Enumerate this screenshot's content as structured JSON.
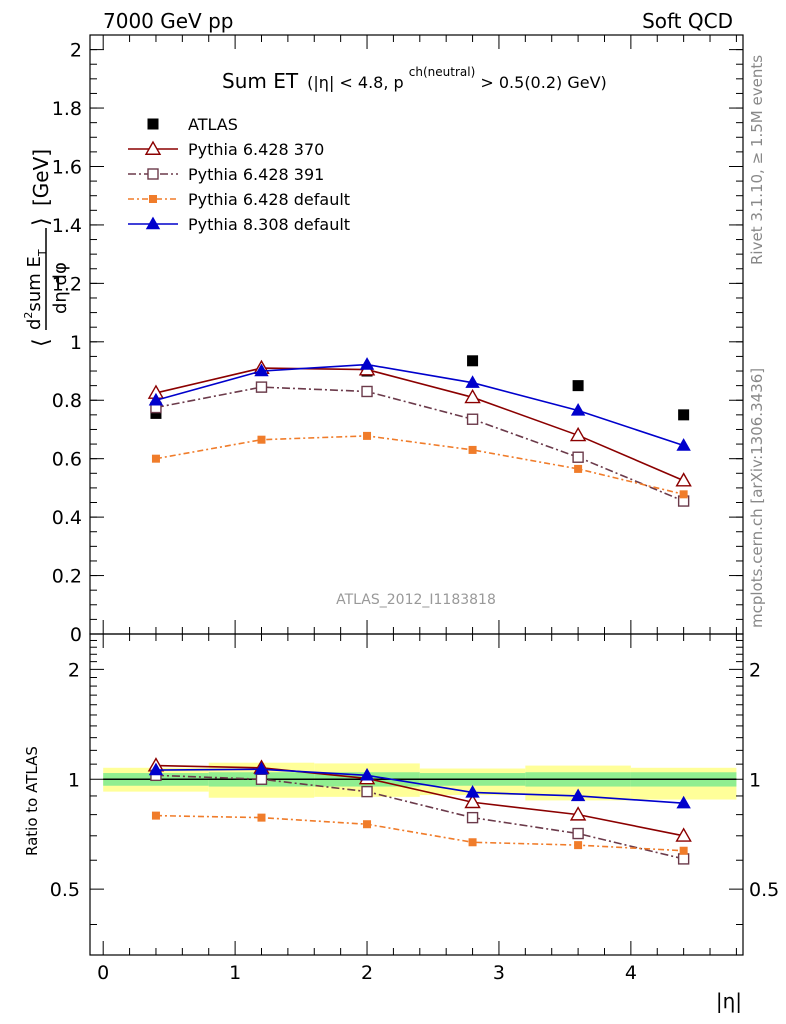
{
  "header": {
    "left": "7000 GeV pp",
    "right": "Soft QCD"
  },
  "side_labels": {
    "rivet": "Rivet 3.1.10, ≥ 1.5M events",
    "mcplots": "mcplots.cern.ch [arXiv:1306.3436]"
  },
  "watermark": "ATLAS_2012_I1183818",
  "colors": {
    "data": "#000000",
    "p6_370": "#8b0000",
    "p6_391": "#6b3a4a",
    "p6_default": "#f07c2a",
    "p8_default": "#0000cc",
    "band_inner": "#90ee90",
    "band_outer": "#ffff99"
  },
  "chart_data": [
    {
      "type": "line",
      "panel": "main",
      "title": {
        "main": "Sum ET",
        "cond1": "(|η| < 4.8, p",
        "sup": "ch(neutral)",
        "cond2": " > 0.5(0.2) GeV)"
      },
      "ylabel": "⟨ d²sum E_T / dη dφ ⟩ [GeV]",
      "xlim": [
        -0.1,
        4.85
      ],
      "ylim": [
        0,
        2.05
      ],
      "yticks": [
        0,
        0.2,
        0.4,
        0.6,
        0.8,
        1,
        1.2,
        1.4,
        1.6,
        1.8,
        2
      ],
      "ytick_labels": [
        "0",
        "0.2",
        "0.4",
        "0.6",
        "0.8",
        "1",
        "1.2",
        "1.4",
        "1.6",
        "1.8",
        "2"
      ],
      "legend_placement": "top-left",
      "x": [
        0.4,
        1.2,
        2.0,
        2.8,
        3.6,
        4.4
      ],
      "series": [
        {
          "key": "data",
          "name": "ATLAS",
          "values": [
            0.755,
            0.845,
            0.9,
            0.935,
            0.85,
            0.75
          ]
        },
        {
          "key": "p6_370",
          "name": "Pythia 6.428 370",
          "values": [
            0.825,
            0.91,
            0.905,
            0.81,
            0.68,
            0.525
          ]
        },
        {
          "key": "p6_391",
          "name": "Pythia 6.428 391",
          "values": [
            0.775,
            0.845,
            0.83,
            0.735,
            0.605,
            0.455
          ]
        },
        {
          "key": "p6_default",
          "name": "Pythia 6.428 default",
          "values": [
            0.6,
            0.665,
            0.678,
            0.63,
            0.565,
            0.478
          ]
        },
        {
          "key": "p8_default",
          "name": "Pythia 8.308 default",
          "values": [
            0.8,
            0.9,
            0.922,
            0.86,
            0.765,
            0.645
          ]
        }
      ]
    },
    {
      "type": "line",
      "panel": "ratio",
      "ylabel": "Ratio to ATLAS",
      "xlabel": "|η|",
      "xlim": [
        -0.1,
        4.85
      ],
      "ylim": [
        0.33,
        2.5
      ],
      "xticks": [
        0,
        1,
        2,
        3,
        4
      ],
      "xtick_labels": [
        "0",
        "1",
        "2",
        "3",
        "4"
      ],
      "yticks": [
        0.5,
        1,
        2
      ],
      "ytick_labels": [
        "0.5",
        "1",
        "2"
      ],
      "bands": [
        {
          "x0": 0.0,
          "x1": 0.8,
          "inner": [
            0.96,
            1.04
          ],
          "outer": [
            0.925,
            1.075
          ]
        },
        {
          "x0": 0.8,
          "x1": 1.6,
          "inner": [
            0.955,
            1.045
          ],
          "outer": [
            0.89,
            1.11
          ]
        },
        {
          "x0": 1.6,
          "x1": 2.4,
          "inner": [
            0.955,
            1.045
          ],
          "outer": [
            0.895,
            1.105
          ]
        },
        {
          "x0": 2.4,
          "x1": 3.2,
          "inner": [
            0.96,
            1.04
          ],
          "outer": [
            0.905,
            1.07
          ]
        },
        {
          "x0": 3.2,
          "x1": 4.0,
          "inner": [
            0.955,
            1.045
          ],
          "outer": [
            0.875,
            1.09
          ]
        },
        {
          "x0": 4.0,
          "x1": 4.8,
          "inner": [
            0.955,
            1.045
          ],
          "outer": [
            0.88,
            1.075
          ]
        }
      ],
      "x": [
        0.4,
        1.2,
        2.0,
        2.8,
        3.6,
        4.4
      ],
      "series": [
        {
          "key": "p6_370",
          "name": "Pythia 6.428 370",
          "values": [
            1.09,
            1.075,
            1.005,
            0.865,
            0.8,
            0.7
          ]
        },
        {
          "key": "p6_391",
          "name": "Pythia 6.428 391",
          "values": [
            1.025,
            1.0,
            0.925,
            0.785,
            0.71,
            0.605
          ]
        },
        {
          "key": "p6_default",
          "name": "Pythia 6.428 default",
          "values": [
            0.795,
            0.785,
            0.753,
            0.672,
            0.66,
            0.637
          ]
        },
        {
          "key": "p8_default",
          "name": "Pythia 8.308 default",
          "values": [
            1.06,
            1.065,
            1.025,
            0.92,
            0.9,
            0.86
          ]
        }
      ]
    }
  ]
}
